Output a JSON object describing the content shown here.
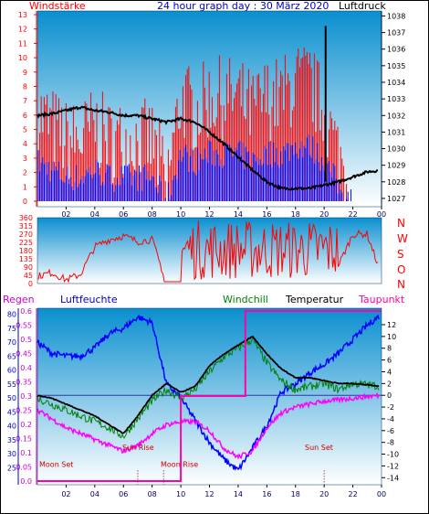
{
  "header": {
    "left_label": "Windstärke",
    "title": "24 hour graph day : 30 März 2020",
    "right_label": "Luftdruck"
  },
  "wind_dir": {
    "side_labels": [
      "N",
      "W",
      "S",
      "O",
      "N"
    ]
  },
  "bottom_header": {
    "regen": "Regen",
    "luftfeuchte": "Luftfeuchte",
    "windchill": "Windchill",
    "temperatur": "Temperatur",
    "taupunkt": "Taupunkt"
  },
  "annotations": {
    "moon_set_1": "Moon Set",
    "sun_rise": "Sun Rise",
    "moon_rise": "Moon Rise",
    "sun_set": "Sun Set"
  },
  "colors": {
    "plot_top": "#0a8fcf",
    "plot_bottom": "#ffffff",
    "wind": "#ff0000",
    "gust": "#0000ff",
    "pressure": "#000000",
    "humidity": "#0000ff",
    "windchill": "#008000",
    "temperature": "#000000",
    "dewpoint": "#ff00ff",
    "rain": "#ff00aa"
  },
  "chart_data": [
    {
      "type": "line",
      "title": "24 hour graph day : 30 März 2020",
      "x_ticks": [
        "02",
        "04",
        "06",
        "08",
        "10",
        "12",
        "14",
        "16",
        "18",
        "20",
        "22",
        "00"
      ],
      "left_axis": {
        "label": "Windstärke",
        "ticks": [
          0,
          1,
          2,
          3,
          4,
          5,
          6,
          7,
          8,
          9,
          10,
          11,
          12,
          13
        ],
        "ylim": [
          0,
          13
        ]
      },
      "right_axis": {
        "label": "Luftdruck",
        "ticks": [
          1027,
          1028,
          1029,
          1030,
          1031,
          1032,
          1033,
          1034,
          1035,
          1036,
          1037,
          1038
        ],
        "ylim": [
          1026.5,
          1038.3
        ]
      },
      "series": [
        {
          "name": "Luftdruck",
          "hours": [
            0,
            1,
            2,
            3,
            4,
            5,
            6,
            7,
            8,
            9,
            10,
            11,
            12,
            13,
            14,
            15,
            16,
            17,
            18,
            19,
            20,
            21,
            22,
            23,
            24
          ],
          "values": [
            1032.0,
            1032.1,
            1032.3,
            1032.5,
            1032.3,
            1032.2,
            1032.0,
            1032.0,
            1031.8,
            1031.6,
            1031.8,
            1031.6,
            1031.0,
            1030.3,
            1029.5,
            1028.7,
            1028.0,
            1027.6,
            1027.6,
            1027.6,
            1027.8,
            1028.0,
            1028.3,
            1028.6,
            1028.7
          ]
        },
        {
          "name": "Windstärke",
          "hours": [
            0,
            1,
            2,
            3,
            4,
            5,
            6,
            7,
            8,
            9,
            10,
            11,
            12,
            13,
            14,
            15,
            16,
            17,
            18,
            19,
            20,
            21,
            22,
            23,
            24
          ],
          "values": [
            5,
            4,
            3,
            3,
            4,
            3,
            3,
            3,
            3,
            0,
            6,
            5,
            6,
            6,
            6,
            5,
            6,
            6,
            7,
            7,
            5,
            2,
            0,
            0,
            0
          ]
        }
      ]
    },
    {
      "type": "line",
      "right_labels": [
        "N",
        "W",
        "S",
        "O",
        "N"
      ],
      "y_ticks": [
        0,
        45,
        90,
        135,
        180,
        225,
        270,
        315,
        360
      ],
      "ylim": [
        0,
        360
      ],
      "series": [
        {
          "name": "Windrichtung",
          "hours": [
            0,
            1,
            2,
            3,
            4,
            5,
            6,
            7,
            8,
            9,
            10,
            11,
            12,
            13,
            14,
            15,
            16,
            17,
            18,
            19,
            20,
            21,
            22,
            23,
            24
          ],
          "values": [
            40,
            60,
            20,
            50,
            200,
            240,
            260,
            230,
            240,
            0,
            300,
            200,
            250,
            220,
            280,
            230,
            270,
            200,
            250,
            230,
            240,
            100,
            270,
            270,
            45
          ]
        }
      ]
    },
    {
      "type": "line",
      "legend": [
        "Regen",
        "Luftfeuchte",
        "Windchill",
        "Temperatur",
        "Taupunkt"
      ],
      "x_ticks": [
        "02",
        "04",
        "06",
        "08",
        "10",
        "12",
        "14",
        "16",
        "18",
        "20",
        "22",
        "00"
      ],
      "humidity_axis": {
        "label": "Luftfeuchte",
        "ticks": [
          25,
          30,
          35,
          40,
          45,
          50,
          55,
          60,
          65,
          70,
          75,
          80
        ],
        "ylim": [
          21.5,
          81.5
        ]
      },
      "rain_axis": {
        "label": "Regen",
        "ticks": [
          "0.0",
          "0.05",
          "0.1",
          "0.15",
          "0.2",
          "0.25",
          "0.3",
          "0.35",
          "0.4",
          "0.45",
          "0.5",
          "0.55",
          "0.6"
        ],
        "ylim": [
          0,
          0.6
        ]
      },
      "temperature_axis": {
        "ticks": [
          -14,
          -12,
          -10,
          -8,
          -6,
          -4,
          -2,
          0,
          2,
          4,
          6,
          8,
          10,
          12
        ],
        "ylim": [
          -15.2,
          14.8
        ]
      },
      "series": [
        {
          "name": "Temperatur",
          "hours": [
            0,
            1,
            2,
            3,
            4,
            5,
            6,
            7,
            8,
            9,
            10,
            11,
            12,
            13,
            14,
            15,
            16,
            17,
            18,
            19,
            20,
            21,
            22,
            23,
            24
          ],
          "values": [
            0.0,
            -0.5,
            -1.5,
            -2.5,
            -3.5,
            -5.0,
            -6.5,
            -3.5,
            0.0,
            2.0,
            0.5,
            1.5,
            5.0,
            7.0,
            8.5,
            10.0,
            7.0,
            4.5,
            3.0,
            3.0,
            2.5,
            2.0,
            2.0,
            1.8,
            1.5
          ]
        },
        {
          "name": "Windchill",
          "hours": [
            0,
            1,
            2,
            3,
            4,
            5,
            6,
            7,
            8,
            9,
            10,
            11,
            12,
            13,
            14,
            15,
            16,
            17,
            18,
            19,
            20,
            21,
            22,
            23,
            24
          ],
          "values": [
            -0.5,
            -1.5,
            -2.5,
            -3.5,
            -4.5,
            -5.5,
            -7.0,
            -4.0,
            -1.0,
            1.0,
            -0.5,
            1.0,
            4.0,
            6.5,
            8.0,
            9.5,
            5.5,
            2.5,
            1.0,
            1.5,
            2.0,
            1.0,
            2.0,
            1.8,
            1.5
          ]
        },
        {
          "name": "Luftfeuchte",
          "hours": [
            0,
            1,
            2,
            3,
            4,
            5,
            6,
            7,
            8,
            9,
            10,
            11,
            12,
            13,
            14,
            15,
            16,
            17,
            18,
            19,
            20,
            21,
            22,
            23,
            24
          ],
          "values": [
            70,
            66,
            65,
            65,
            68,
            73,
            75,
            79,
            77,
            55,
            50,
            42,
            34,
            28,
            24,
            32,
            40,
            52,
            55,
            59,
            62,
            66,
            71,
            76,
            80
          ]
        },
        {
          "name": "Taupunkt",
          "hours": [
            0,
            1,
            2,
            3,
            4,
            5,
            6,
            7,
            8,
            9,
            10,
            11,
            12,
            13,
            14,
            15,
            16,
            17,
            18,
            19,
            20,
            21,
            22,
            23,
            24
          ],
          "values": [
            -2.5,
            -4.0,
            -5.5,
            -6.5,
            -7.5,
            -8.5,
            -9.5,
            -8.5,
            -6.5,
            -5.0,
            -4.5,
            -4.5,
            -6.0,
            -9.0,
            -10.5,
            -9.5,
            -5.5,
            -3.0,
            -2.0,
            -1.5,
            -1.0,
            -0.8,
            -0.5,
            -0.2,
            0.0
          ]
        },
        {
          "name": "Regen",
          "hours": [
            0,
            10,
            10,
            14.5,
            14.5,
            24
          ],
          "values": [
            0.0,
            0.0,
            0.3,
            0.3,
            0.6,
            0.6
          ]
        }
      ]
    }
  ]
}
